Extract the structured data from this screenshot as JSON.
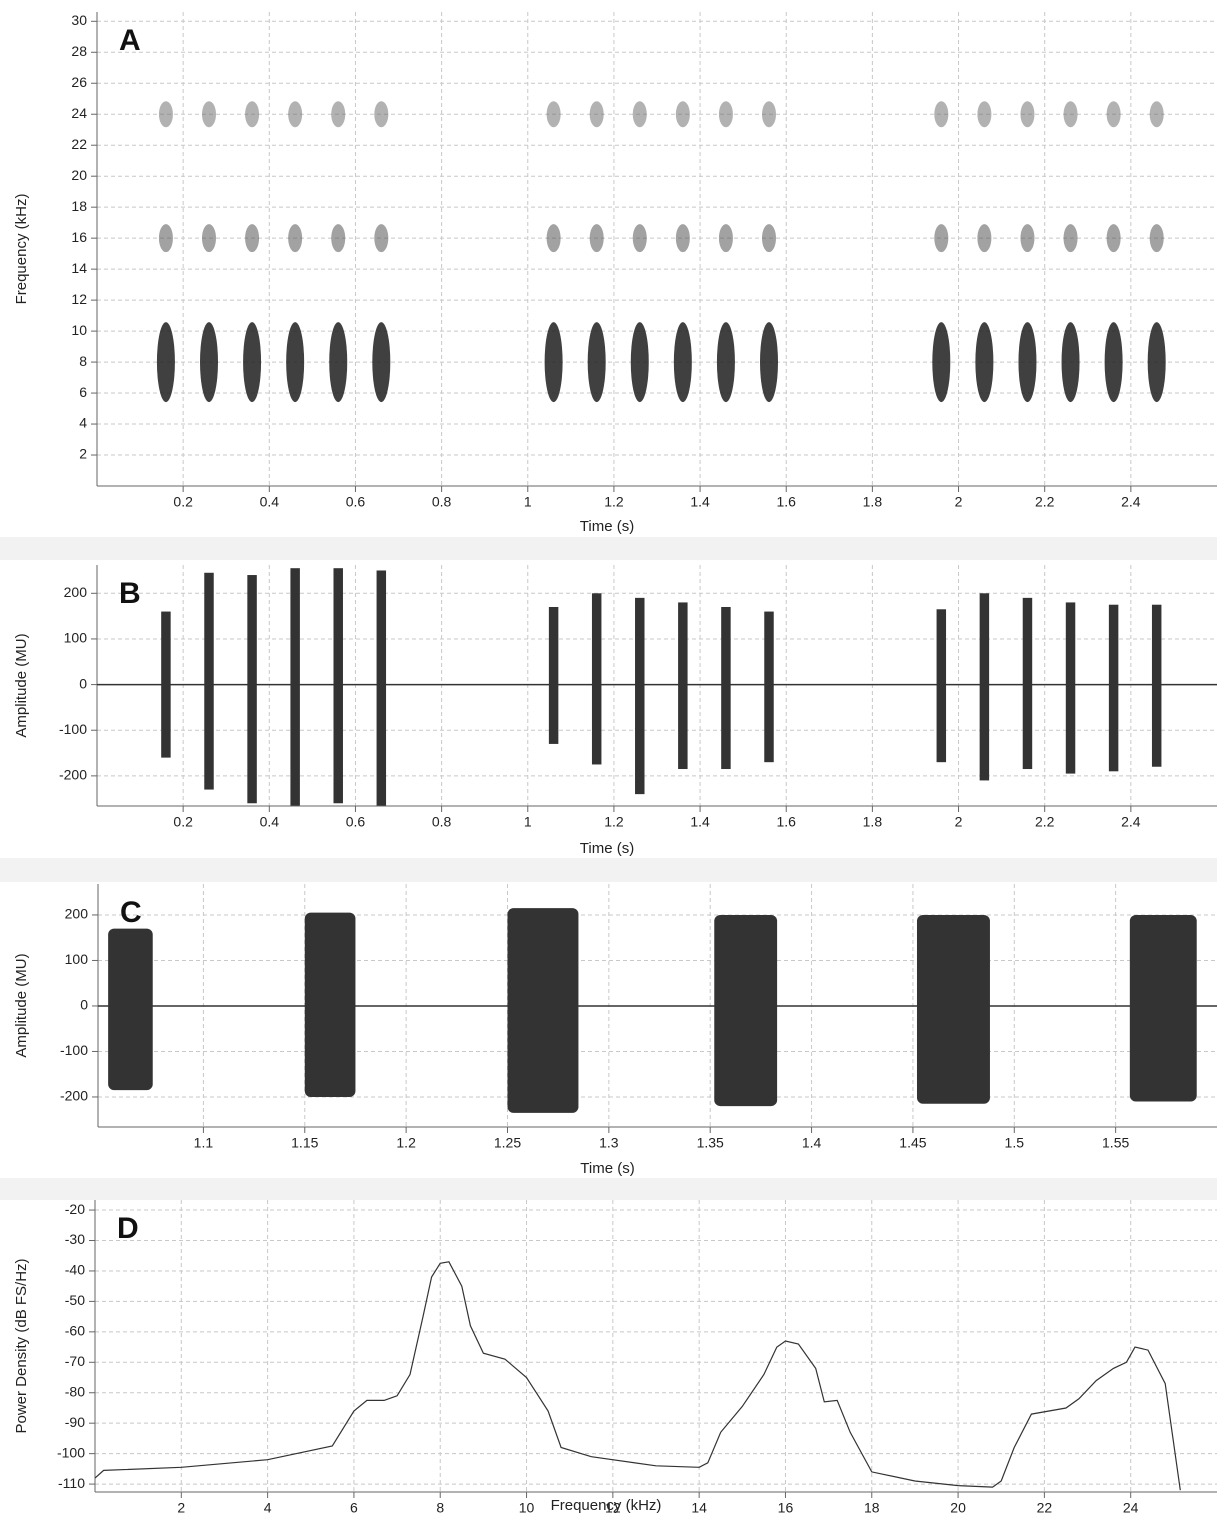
{
  "chart_data": [
    {
      "type": "spectrogram",
      "panel_label": "A",
      "x_label": "Time (s)",
      "y_label": "Frequency (kHz)",
      "xlim": [
        0,
        2.6
      ],
      "ylim": [
        0,
        30.6
      ],
      "xticks": [
        0.2,
        0.4,
        0.6,
        0.8,
        1,
        1.2,
        1.4,
        1.6,
        1.8,
        2,
        2.2,
        2.4
      ],
      "yticks": [
        2,
        4,
        6,
        8,
        10,
        12,
        14,
        16,
        18,
        20,
        22,
        24,
        26,
        28,
        30
      ],
      "grid": true,
      "x": [
        0.16,
        0.26,
        0.36,
        0.46,
        0.56,
        0.66,
        1.06,
        1.16,
        1.26,
        1.36,
        1.46,
        1.56,
        1.96,
        2.06,
        2.16,
        2.26,
        2.36,
        2.46
      ],
      "bands": [
        8,
        16,
        24
      ],
      "colors": [
        "#1e1e1e",
        "#555555",
        "#666666"
      ]
    },
    {
      "type": "waveform",
      "panel_label": "B",
      "x_label": "Time (s)",
      "y_label": "Amplitude (MU)",
      "xlim": [
        0,
        2.6
      ],
      "ylim": [
        -266,
        262
      ],
      "xticks": [
        0.2,
        0.4,
        0.6,
        0.8,
        1,
        1.2,
        1.4,
        1.6,
        1.8,
        2,
        2.2,
        2.4
      ],
      "yticks": [
        -200,
        -100,
        0,
        100,
        200
      ],
      "grid": true,
      "color": "#333333",
      "x": [
        0.16,
        0.26,
        0.36,
        0.46,
        0.56,
        0.66,
        1.06,
        1.16,
        1.26,
        1.36,
        1.46,
        1.56,
        1.96,
        2.06,
        2.16,
        2.26,
        2.36,
        2.46
      ],
      "upper": [
        160,
        245,
        240,
        255,
        255,
        250,
        170,
        200,
        190,
        180,
        170,
        160,
        165,
        200,
        190,
        180,
        175,
        175
      ],
      "lower": [
        -160,
        -230,
        -260,
        -265,
        -260,
        -265,
        -130,
        -175,
        -240,
        -185,
        -185,
        -170,
        -170,
        -210,
        -185,
        -195,
        -190,
        -180
      ]
    },
    {
      "type": "waveform-zoom",
      "panel_label": "C",
      "x_label": "Time (s)",
      "y_label": "Amplitude (MU)",
      "xlim": [
        1.048,
        1.6
      ],
      "ylim": [
        -266,
        268
      ],
      "xticks": [
        1.1,
        1.15,
        1.2,
        1.25,
        1.3,
        1.35,
        1.4,
        1.45,
        1.5,
        1.55
      ],
      "yticks": [
        -200,
        -100,
        0,
        100,
        200
      ],
      "grid": true,
      "color": "#333333",
      "start": [
        1.053,
        1.15,
        1.25,
        1.352,
        1.452,
        1.557
      ],
      "end": [
        1.075,
        1.175,
        1.285,
        1.383,
        1.488,
        1.59
      ],
      "upper": [
        170,
        205,
        215,
        200,
        200,
        200
      ],
      "lower": [
        -185,
        -200,
        -235,
        -220,
        -215,
        -210
      ]
    },
    {
      "type": "line",
      "panel_label": "D",
      "x_label": "Frequency (kHz)",
      "y_label": "Power Density (dB FS/Hz)",
      "xlim": [
        0,
        26
      ],
      "ylim": [
        -112.6,
        -16.7
      ],
      "xticks": [
        2,
        4,
        6,
        8,
        10,
        12,
        14,
        16,
        18,
        20,
        22,
        24
      ],
      "yticks": [
        -110,
        -100,
        -90,
        -80,
        -70,
        -60,
        -50,
        -40,
        -30,
        -20
      ],
      "grid": true,
      "color": "#333333",
      "x": [
        0,
        0.2,
        2,
        4,
        5.5,
        6,
        6.3,
        6.7,
        7,
        7.3,
        7.6,
        7.8,
        8,
        8.2,
        8.5,
        8.7,
        9,
        9.5,
        10,
        10.5,
        10.8,
        11.5,
        13,
        14,
        14.2,
        14.5,
        15,
        15.5,
        15.8,
        16,
        16.3,
        16.7,
        16.9,
        17.2,
        17.5,
        18,
        19,
        20,
        20.8,
        21,
        21.3,
        21.7,
        22.5,
        22.8,
        23.2,
        23.6,
        23.9,
        24.1,
        24.4,
        24.8,
        25.15
      ],
      "y": [
        -108,
        -105.5,
        -104.5,
        -102,
        -97.5,
        -86,
        -82.5,
        -82.5,
        -81,
        -74,
        -55,
        -42,
        -37.5,
        -37,
        -45,
        -58,
        -67,
        -69,
        -75,
        -86,
        -98,
        -101,
        -104,
        -104.5,
        -103,
        -93,
        -84.5,
        -74,
        -65,
        -63,
        -64,
        -72,
        -83,
        -82.5,
        -93,
        -106,
        -109,
        -110.5,
        -111,
        -109,
        -98,
        -87,
        -85,
        -82,
        -76,
        -72,
        -70,
        -65,
        -66,
        -77,
        -112
      ]
    }
  ]
}
